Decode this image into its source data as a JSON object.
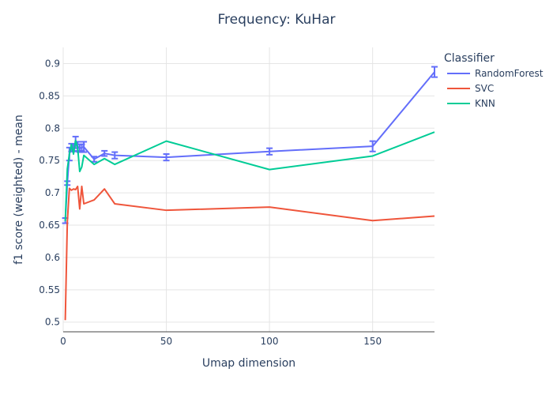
{
  "chart_data": {
    "type": "line",
    "title": "Frequency: KuHar",
    "xlabel": "Umap dimension",
    "ylabel": "f1 score (weighted) - mean",
    "xlim": [
      0,
      180
    ],
    "ylim": [
      0.485,
      0.925
    ],
    "xticks": [
      0,
      50,
      100,
      150
    ],
    "yticks": [
      0.5,
      0.55,
      0.6,
      0.65,
      0.7,
      0.75,
      0.8,
      0.85,
      0.9
    ],
    "grid": true,
    "legend": {
      "title": "Classifier",
      "position": "right"
    },
    "series": [
      {
        "name": "RandomForest",
        "color": "#636efa",
        "x": [
          1,
          2,
          3,
          4,
          5,
          6,
          7,
          8,
          9,
          10,
          15,
          20,
          25,
          50,
          100,
          150,
          180
        ],
        "y": [
          0.657,
          0.715,
          0.76,
          0.77,
          0.769,
          0.778,
          0.772,
          0.769,
          0.77,
          0.771,
          0.752,
          0.761,
          0.758,
          0.755,
          0.764,
          0.772,
          0.887
        ],
        "error": [
          0.004,
          0.003,
          0.01,
          0.006,
          0.005,
          0.009,
          0.007,
          0.006,
          0.005,
          0.008,
          0.004,
          0.004,
          0.005,
          0.005,
          0.005,
          0.008,
          0.008
        ]
      },
      {
        "name": "SVC",
        "color": "#ef553b",
        "x": [
          1,
          2,
          3,
          4,
          5,
          6,
          7,
          8,
          9,
          10,
          15,
          20,
          25,
          50,
          100,
          150,
          180
        ],
        "y": [
          0.503,
          0.655,
          0.707,
          0.704,
          0.706,
          0.705,
          0.71,
          0.675,
          0.71,
          0.683,
          0.689,
          0.706,
          0.683,
          0.673,
          0.678,
          0.657,
          0.664
        ],
        "error": [
          0,
          0,
          0,
          0,
          0,
          0,
          0,
          0,
          0,
          0,
          0,
          0,
          0,
          0,
          0,
          0,
          0
        ]
      },
      {
        "name": "KNN",
        "color": "#00cc96",
        "x": [
          1,
          2,
          3,
          4,
          5,
          6,
          7,
          8,
          9,
          10,
          15,
          20,
          25,
          50,
          100,
          150,
          180
        ],
        "y": [
          0.656,
          0.737,
          0.76,
          0.775,
          0.76,
          0.781,
          0.77,
          0.733,
          0.74,
          0.758,
          0.744,
          0.753,
          0.744,
          0.78,
          0.736,
          0.757,
          0.794
        ],
        "error": [
          0,
          0,
          0,
          0,
          0,
          0,
          0,
          0,
          0,
          0,
          0,
          0,
          0,
          0,
          0,
          0,
          0
        ]
      }
    ]
  }
}
